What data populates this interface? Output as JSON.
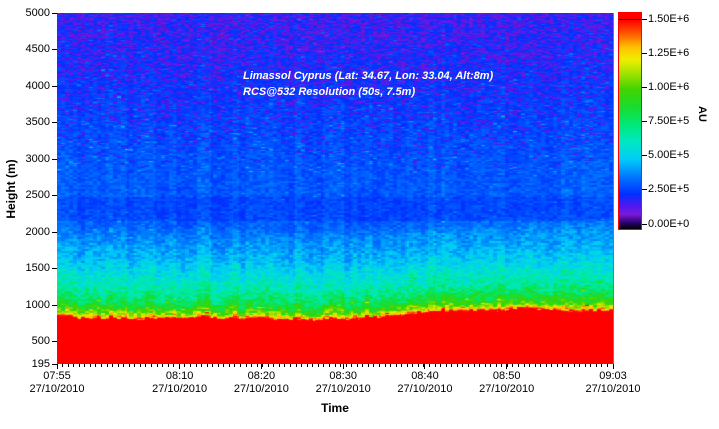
{
  "chart_data": {
    "type": "heatmap",
    "annotation": {
      "line1": "Limassol Cyprus (Lat: 34.67, Lon: 33.04, Alt:8m)",
      "line2": "RCS@532 Resolution (50s, 7.5m)",
      "color": "#ffffff"
    },
    "xlabel": "Time",
    "ylabel": "Height (m)",
    "colorbar_unit": "AU",
    "x_axis": {
      "start": "07:55",
      "end": "09:03",
      "date": "27/10/2010",
      "span_minutes": 68,
      "ticks": [
        {
          "label": "07:55",
          "date": "27/10/2010",
          "t": 0
        },
        {
          "label": "08:10",
          "date": "27/10/2010",
          "t": 0.2206
        },
        {
          "label": "08:20",
          "date": "27/10/2010",
          "t": 0.3676
        },
        {
          "label": "08:30",
          "date": "27/10/2010",
          "t": 0.5147
        },
        {
          "label": "08:40",
          "date": "27/10/2010",
          "t": 0.6618
        },
        {
          "label": "08:50",
          "date": "27/10/2010",
          "t": 0.8088
        },
        {
          "label": "09:03",
          "date": "27/10/2010",
          "t": 1
        }
      ],
      "minor_tick_count": 100
    },
    "y_axis": {
      "min": 195,
      "max": 5000,
      "ticks": [
        195,
        500,
        1000,
        1500,
        2000,
        2500,
        3000,
        3500,
        4000,
        4500,
        5000
      ]
    },
    "colorbar": {
      "min": 0,
      "max": 1500000,
      "tick_labels": [
        "1.50E+6",
        "1.25E+6",
        "1.00E+6",
        "7.50E+5",
        "5.00E+5",
        "2.50E+5",
        "0.00E+0"
      ],
      "border_color": "#ff0000"
    },
    "colormap": [
      [
        0,
        "#000000"
      ],
      [
        0.03,
        "#2a0070"
      ],
      [
        0.07,
        "#7a1ad8"
      ],
      [
        0.11,
        "#5018f0"
      ],
      [
        0.167,
        "#0030ff"
      ],
      [
        0.25,
        "#0078ff"
      ],
      [
        0.333,
        "#00ccf8"
      ],
      [
        0.42,
        "#00e8c0"
      ],
      [
        0.5,
        "#00e878"
      ],
      [
        0.58,
        "#18dc30"
      ],
      [
        0.667,
        "#40d400"
      ],
      [
        0.75,
        "#a8e400"
      ],
      [
        0.81,
        "#f0ee00"
      ],
      [
        0.87,
        "#ffc000"
      ],
      [
        0.93,
        "#ff6000"
      ],
      [
        1,
        "#ff0000"
      ]
    ],
    "boundary_layer_top_m": [
      [
        0,
        830
      ],
      [
        0.07,
        812
      ],
      [
        0.14,
        798
      ],
      [
        0.22,
        818
      ],
      [
        0.3,
        812
      ],
      [
        0.38,
        800
      ],
      [
        0.46,
        785
      ],
      [
        0.52,
        795
      ],
      [
        0.58,
        822
      ],
      [
        0.65,
        880
      ],
      [
        0.72,
        920
      ],
      [
        0.78,
        905
      ],
      [
        0.83,
        950
      ],
      [
        0.88,
        930
      ],
      [
        0.93,
        898
      ],
      [
        1,
        915
      ]
    ],
    "bl_value_falloff": [
      [
        0,
        1550000
      ],
      [
        27,
        1300000
      ],
      [
        70,
        1080000
      ],
      [
        140,
        920000
      ],
      [
        250,
        780000
      ],
      [
        410,
        660000
      ],
      [
        620,
        560000
      ],
      [
        820,
        470000
      ],
      [
        1100,
        400000
      ],
      [
        1600,
        200000
      ]
    ],
    "background_value_by_height": [
      [
        1277,
        500000
      ],
      [
        1550,
        420000
      ],
      [
        1824,
        375000
      ],
      [
        2100,
        335000
      ],
      [
        2510,
        325000
      ],
      [
        2990,
        310000
      ],
      [
        3540,
        285000
      ],
      [
        4080,
        260000
      ],
      [
        4630,
        240000
      ],
      [
        5000,
        230000
      ]
    ],
    "dark_band": {
      "h_min": 2150,
      "h_max": 2480,
      "factor": 0.88
    },
    "axis_text_color": "#000000"
  }
}
